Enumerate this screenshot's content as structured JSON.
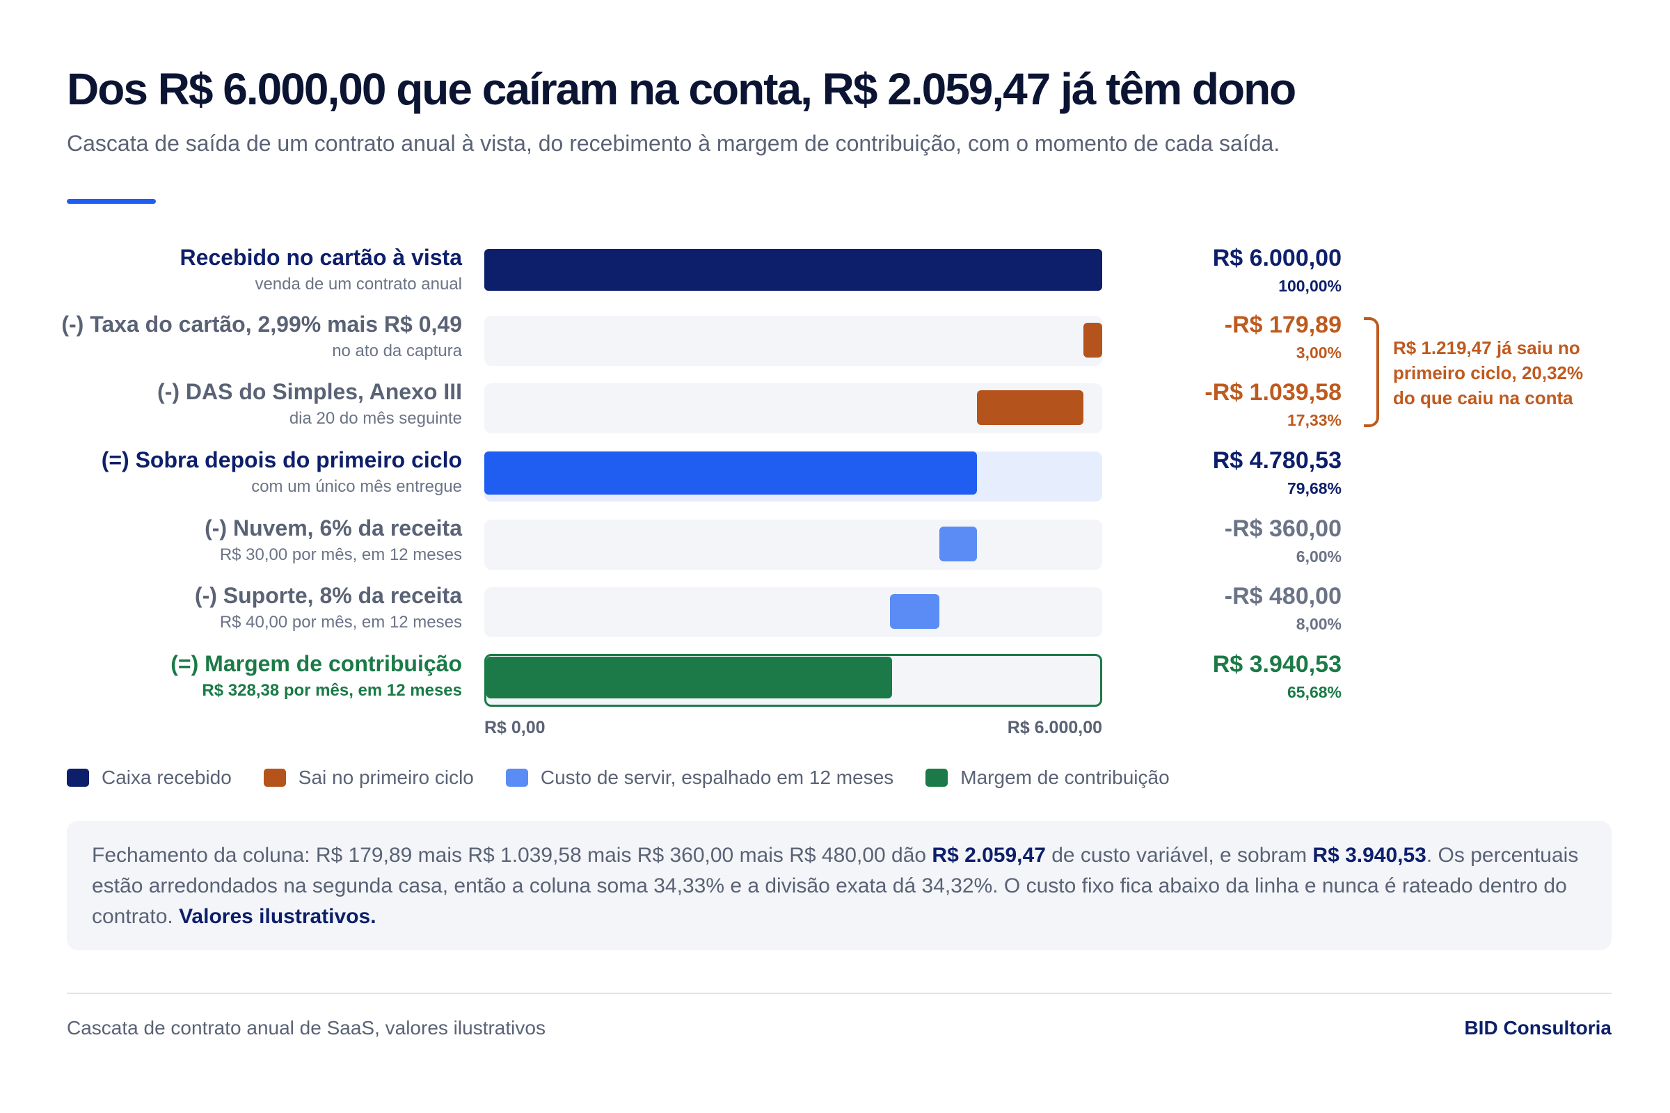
{
  "header": {
    "title": "Dos R$ 6.000,00 que caíram na conta, R$ 2.059,47 já têm dono",
    "subtitle": "Cascata de saída de um contrato anual à vista, do recebimento à margem de contribuição, com o momento de cada saída."
  },
  "colors": {
    "caixa": "#0d1f6b",
    "ciclo": "#b5531c",
    "sobra": "#1f5ef0",
    "custo": "#5b8cf5",
    "margem": "#1b7a47"
  },
  "chart_data": {
    "type": "bar",
    "subtype": "waterfall",
    "xlim": [
      0,
      6000
    ],
    "axis_ticks": [
      "R$ 0,00",
      "R$ 6.000,00"
    ],
    "steps": [
      {
        "label": "Recebido no cartão à vista",
        "sublabel": "venda de um contrato anual",
        "value": 6000.0,
        "start": 0,
        "end": 6000.0,
        "kind": "total",
        "display_value": "R$ 6.000,00",
        "display_pct": "100,00%",
        "color_key": "caixa"
      },
      {
        "label": "(-) Taxa do cartão, 2,99% mais R$ 0,49",
        "sublabel": "no ato da captura",
        "value": -179.89,
        "start": 5820.11,
        "end": 6000.0,
        "kind": "cycle",
        "display_value": "-R$ 179,89",
        "display_pct": "3,00%",
        "color_key": "ciclo"
      },
      {
        "label": "(-) DAS do Simples, Anexo III",
        "sublabel": "dia 20 do mês seguinte",
        "value": -1039.58,
        "start": 4780.53,
        "end": 5820.11,
        "kind": "cycle",
        "display_value": "-R$ 1.039,58",
        "display_pct": "17,33%",
        "color_key": "ciclo"
      },
      {
        "label": "(=) Sobra depois do primeiro ciclo",
        "sublabel": "com um único mês entregue",
        "value": 4780.53,
        "start": 0,
        "end": 4780.53,
        "kind": "subtotal",
        "display_value": "R$ 4.780,53",
        "display_pct": "79,68%",
        "color_key": "sobra"
      },
      {
        "label": "(-) Nuvem, 6% da receita",
        "sublabel": "R$ 30,00 por mês, em 12 meses",
        "value": -360.0,
        "start": 4420.53,
        "end": 4780.53,
        "kind": "spread",
        "display_value": "-R$ 360,00",
        "display_pct": "6,00%",
        "color_key": "custo"
      },
      {
        "label": "(-) Suporte, 8% da receita",
        "sublabel": "R$ 40,00 por mês, em 12 meses",
        "value": -480.0,
        "start": 3940.53,
        "end": 4420.53,
        "kind": "spread",
        "display_value": "-R$ 480,00",
        "display_pct": "8,00%",
        "color_key": "custo"
      },
      {
        "label": "(=) Margem de contribuição",
        "sublabel": "R$ 328,38 por mês, em 12 meses",
        "value": 3940.53,
        "start": 0,
        "end": 3940.53,
        "kind": "margin",
        "display_value": "R$ 3.940,53",
        "display_pct": "65,68%",
        "color_key": "margem"
      }
    ],
    "annotation": "R$ 1.219,47 já saiu no primeiro ciclo, 20,32% do que caiu na conta",
    "legend": [
      {
        "label": "Caixa recebido",
        "color_key": "caixa"
      },
      {
        "label": "Sai no primeiro ciclo",
        "color_key": "ciclo"
      },
      {
        "label": "Custo de servir, espalhado em 12 meses",
        "color_key": "custo"
      },
      {
        "label": "Margem de contribuição",
        "color_key": "margem"
      }
    ]
  },
  "note": {
    "part1": "Fechamento da coluna: R$ 179,89 mais R$ 1.039,58 mais R$ 360,00 mais R$ 480,00 dão ",
    "bold1": "R$ 2.059,47",
    "part2": " de custo variável, e sobram ",
    "bold2": "R$ 3.940,53",
    "part3": ". Os percentuais estão arredondados na segunda casa, então a coluna soma 34,33% e a divisão exata dá 34,32%. O custo fixo fica abaixo da linha e nunca é rateado dentro do contrato. ",
    "bold3": "Valores ilustrativos."
  },
  "footer": {
    "source": "Cascata de contrato anual de SaaS, valores ilustrativos",
    "brand": "BID Consultoria"
  }
}
